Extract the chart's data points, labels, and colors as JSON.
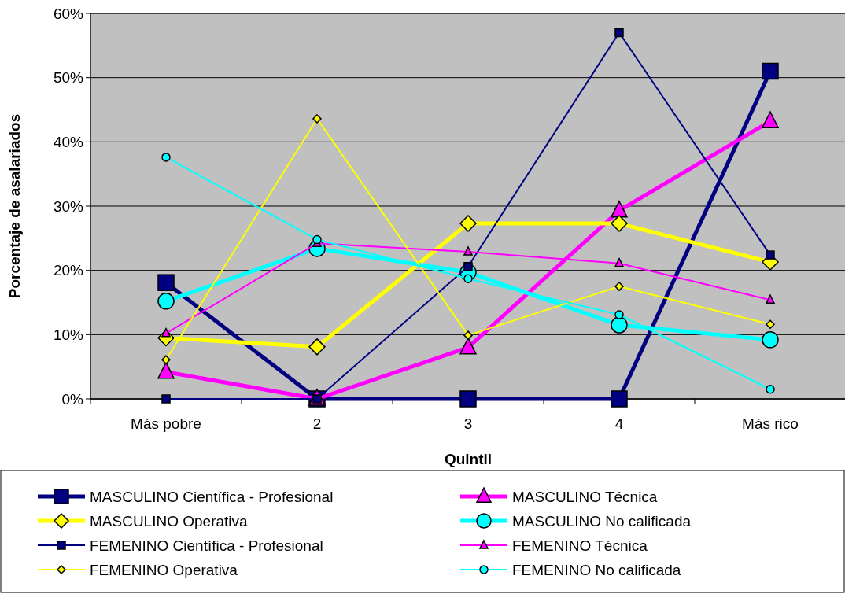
{
  "chart_data": {
    "type": "line",
    "xlabel": "Quintil",
    "ylabel": "Porcentaje de asalariados",
    "categories": [
      "Más pobre",
      "2",
      "3",
      "4",
      "Más rico"
    ],
    "ylim": [
      0,
      60
    ],
    "yticks": [
      {
        "value": 0,
        "label": "0%"
      },
      {
        "value": 10,
        "label": "10%"
      },
      {
        "value": 20,
        "label": "20%"
      },
      {
        "value": 30,
        "label": "30%"
      },
      {
        "value": 40,
        "label": "40%"
      },
      {
        "value": 50,
        "label": "50%"
      },
      {
        "value": 60,
        "label": "60%"
      }
    ],
    "grid": "y",
    "legend": "bottom",
    "line_style": "solid",
    "series": [
      {
        "name": "MASCULINO Científica - Profesional",
        "color": "#000080",
        "marker": "square",
        "values": [
          18.1,
          0,
          0,
          0,
          51
        ]
      },
      {
        "name": "MASCULINO Técnica",
        "color": "#ff00ff",
        "marker": "triangle",
        "values": [
          4.2,
          0,
          8,
          29.3,
          43.2
        ]
      },
      {
        "name": "MASCULINO Operativa",
        "color": "#ffff00",
        "marker": "diamond",
        "values": [
          9.5,
          8.1,
          27.3,
          27.3,
          21.3
        ]
      },
      {
        "name": "MASCULINO No calificada",
        "color": "#00ffff",
        "marker": "circle",
        "values": [
          15.2,
          23.4,
          19.7,
          11.5,
          9.2
        ]
      },
      {
        "name": "FEMENINO Científica - Profesional",
        "color": "#000080",
        "marker": "square",
        "values": [
          0,
          0,
          20.6,
          57,
          22.4
        ]
      },
      {
        "name": "FEMENINO Técnica",
        "color": "#ff00ff",
        "marker": "triangle",
        "values": [
          10.2,
          24.2,
          22.9,
          21.1,
          15.4
        ]
      },
      {
        "name": "FEMENINO Operativa",
        "color": "#ffff00",
        "marker": "diamond",
        "values": [
          6.1,
          43.6,
          9.9,
          17.5,
          11.6
        ]
      },
      {
        "name": "FEMENINO No calificada",
        "color": "#00ffff",
        "marker": "circle",
        "values": [
          37.6,
          24.8,
          18.7,
          13.1,
          1.5
        ]
      }
    ]
  }
}
